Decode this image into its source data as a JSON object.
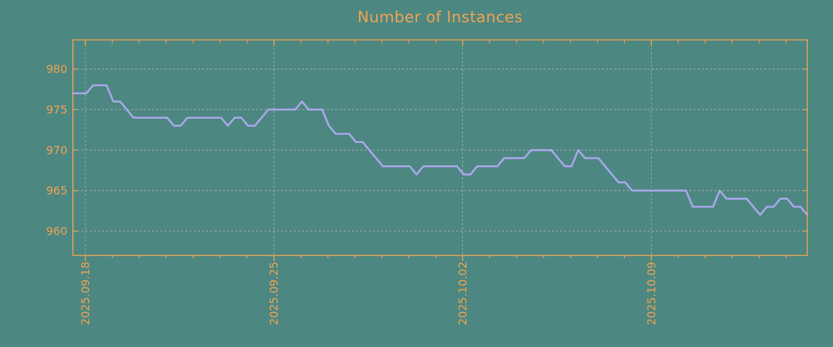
{
  "chart_data": {
    "type": "line",
    "title": "Number of Instances",
    "xlabel": "",
    "ylabel": "",
    "grid": true,
    "legend": "none",
    "ylim": [
      957.0,
      983.6
    ],
    "y_ticks": [
      980,
      975,
      970,
      965,
      960
    ],
    "x_major_ticks": [
      {
        "label": "2025.09.18",
        "point_index": 1.85
      },
      {
        "label": "2025.09.25",
        "point_index": 29.85
      },
      {
        "label": "2025.10.02",
        "point_index": 57.85
      },
      {
        "label": "2025.10.09",
        "point_index": 85.85
      }
    ],
    "x_minor_first_point": 1.85,
    "x_minor_step_points": 4,
    "x_minor_count": 27,
    "series": [
      {
        "name": "Number of Instances",
        "values": [
          977,
          977,
          977,
          978,
          978,
          978,
          976,
          976,
          975,
          974,
          974,
          974,
          974,
          974,
          974,
          973,
          973,
          974,
          974,
          974,
          974,
          974,
          974,
          973,
          974,
          974,
          973,
          973,
          974,
          975,
          975,
          975,
          975,
          975,
          976,
          975,
          975,
          975,
          973,
          972,
          972,
          972,
          971,
          971,
          970,
          969,
          968,
          968,
          968,
          968,
          968,
          967,
          968,
          968,
          968,
          968,
          968,
          968,
          967,
          967,
          968,
          968,
          968,
          968,
          969,
          969,
          969,
          969,
          970,
          970,
          970,
          970,
          969,
          968,
          968,
          970,
          969,
          969,
          969,
          968,
          967,
          966,
          966,
          965,
          965,
          965,
          965,
          965,
          965,
          965,
          965,
          965,
          963,
          963,
          963,
          963,
          965,
          964,
          964,
          964,
          964,
          963,
          962,
          963,
          963,
          964,
          964,
          963,
          963,
          962
        ]
      }
    ]
  },
  "colors": {
    "background": "#4D8781",
    "axis": "#F0A352",
    "text": "#F0A352",
    "line": "#A8A8EA",
    "grid": "#A9B0AD"
  }
}
